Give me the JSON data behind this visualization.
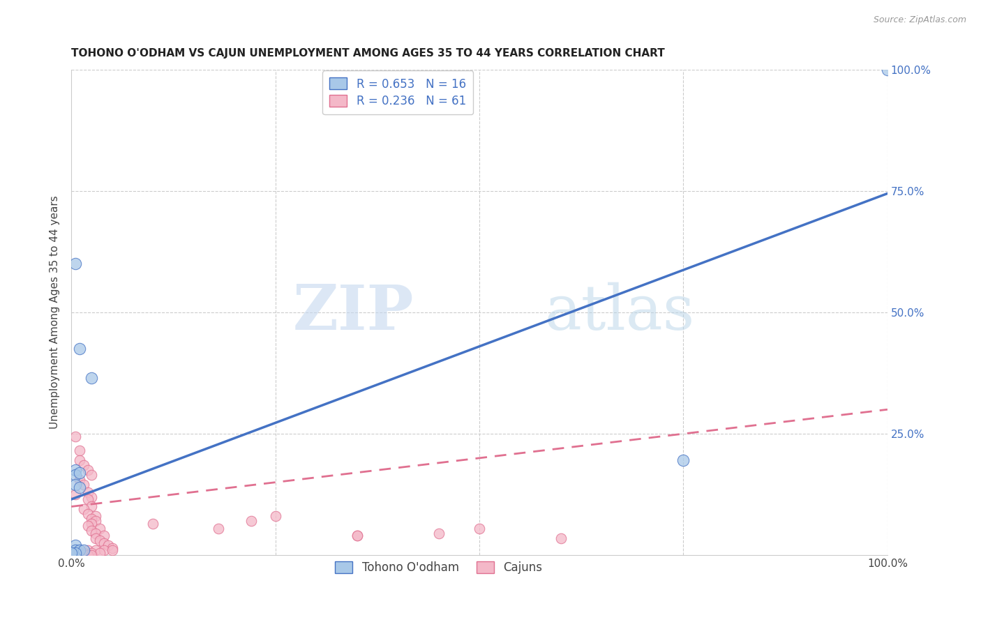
{
  "title": "TOHONO O'ODHAM VS CAJUN UNEMPLOYMENT AMONG AGES 35 TO 44 YEARS CORRELATION CHART",
  "source": "Source: ZipAtlas.com",
  "ylabel": "Unemployment Among Ages 35 to 44 years",
  "xlim": [
    0,
    1.0
  ],
  "ylim": [
    0,
    1.0
  ],
  "watermark_zip": "ZIP",
  "watermark_atlas": "atlas",
  "tohono_color": "#a8c8e8",
  "cajun_color": "#f4b8c8",
  "tohono_line_color": "#4472c4",
  "cajun_line_color": "#e07090",
  "tohono_R": 0.653,
  "tohono_N": 16,
  "cajun_R": 0.236,
  "cajun_N": 61,
  "tohono_points": [
    [
      0.005,
      0.6
    ],
    [
      0.01,
      0.425
    ],
    [
      0.025,
      0.365
    ],
    [
      0.005,
      0.175
    ],
    [
      0.005,
      0.165
    ],
    [
      0.01,
      0.17
    ],
    [
      0.005,
      0.145
    ],
    [
      0.01,
      0.14
    ],
    [
      0.005,
      0.02
    ],
    [
      0.005,
      0.01
    ],
    [
      0.01,
      0.01
    ],
    [
      0.015,
      0.01
    ],
    [
      0.005,
      0.005
    ],
    [
      0.0,
      0.005
    ],
    [
      0.75,
      0.195
    ],
    [
      1.0,
      1.0
    ]
  ],
  "cajun_points": [
    [
      0.005,
      0.245
    ],
    [
      0.01,
      0.215
    ],
    [
      0.01,
      0.195
    ],
    [
      0.015,
      0.185
    ],
    [
      0.02,
      0.175
    ],
    [
      0.025,
      0.165
    ],
    [
      0.01,
      0.155
    ],
    [
      0.015,
      0.145
    ],
    [
      0.02,
      0.13
    ],
    [
      0.005,
      0.125
    ],
    [
      0.025,
      0.12
    ],
    [
      0.02,
      0.115
    ],
    [
      0.025,
      0.1
    ],
    [
      0.015,
      0.095
    ],
    [
      0.02,
      0.085
    ],
    [
      0.03,
      0.08
    ],
    [
      0.025,
      0.075
    ],
    [
      0.03,
      0.07
    ],
    [
      0.025,
      0.065
    ],
    [
      0.02,
      0.06
    ],
    [
      0.035,
      0.055
    ],
    [
      0.025,
      0.05
    ],
    [
      0.03,
      0.045
    ],
    [
      0.04,
      0.04
    ],
    [
      0.03,
      0.035
    ],
    [
      0.035,
      0.03
    ],
    [
      0.04,
      0.025
    ],
    [
      0.045,
      0.02
    ],
    [
      0.05,
      0.015
    ],
    [
      0.01,
      0.01
    ],
    [
      0.02,
      0.01
    ],
    [
      0.03,
      0.01
    ],
    [
      0.04,
      0.01
    ],
    [
      0.05,
      0.01
    ],
    [
      0.015,
      0.005
    ],
    [
      0.025,
      0.005
    ],
    [
      0.035,
      0.005
    ],
    [
      0.0,
      0.005
    ],
    [
      0.005,
      0.005
    ],
    [
      0.01,
      0.005
    ],
    [
      0.005,
      0.003
    ],
    [
      0.0,
      0.003
    ],
    [
      0.005,
      0.002
    ],
    [
      0.0,
      0.002
    ],
    [
      0.005,
      0.001
    ],
    [
      0.0,
      0.001
    ],
    [
      0.0,
      0.0
    ],
    [
      0.005,
      0.0
    ],
    [
      0.01,
      0.0
    ],
    [
      0.015,
      0.0
    ],
    [
      0.02,
      0.0
    ],
    [
      0.025,
      0.0
    ],
    [
      0.1,
      0.065
    ],
    [
      0.18,
      0.055
    ],
    [
      0.22,
      0.07
    ],
    [
      0.25,
      0.08
    ],
    [
      0.35,
      0.04
    ],
    [
      0.35,
      0.04
    ],
    [
      0.45,
      0.045
    ],
    [
      0.5,
      0.055
    ],
    [
      0.6,
      0.035
    ]
  ]
}
